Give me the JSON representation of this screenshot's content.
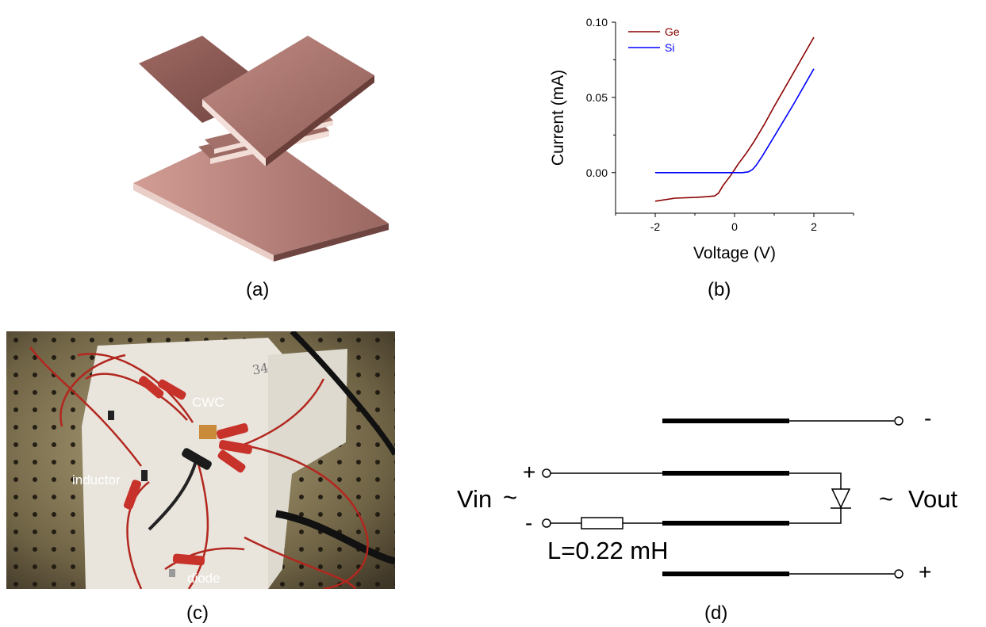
{
  "panels": {
    "a": {
      "label": "(a)"
    },
    "b": {
      "label": "(b)"
    },
    "c": {
      "label": "(c)"
    },
    "d": {
      "label": "(d)"
    }
  },
  "chart_data": {
    "type": "line",
    "title": "",
    "xlabel": "Voltage (V)",
    "ylabel": "Current (mA)",
    "xlim": [
      -3,
      3
    ],
    "ylim": [
      -0.027,
      0.1
    ],
    "xticks": [
      -2,
      0,
      2
    ],
    "xtick_labels": [
      "-2",
      "0",
      "2"
    ],
    "yticks": [
      0.0,
      0.05,
      0.1
    ],
    "ytick_labels": [
      "0.00",
      "0.05",
      "0.10"
    ],
    "legend": "top-left",
    "grid": false,
    "series": [
      {
        "name": "Ge",
        "color": "#8b0000",
        "x": [
          -2.0,
          -1.5,
          -1.0,
          -0.7,
          -0.5,
          -0.4,
          -0.3,
          -0.2,
          -0.1,
          0.0,
          0.1,
          0.3,
          0.5,
          0.75,
          1.0,
          1.5,
          2.0
        ],
        "y": [
          -0.019,
          -0.017,
          -0.0165,
          -0.016,
          -0.0155,
          -0.0135,
          -0.009,
          -0.0055,
          -0.002,
          0.002,
          0.006,
          0.013,
          0.021,
          0.032,
          0.044,
          0.067,
          0.09
        ]
      },
      {
        "name": "Si",
        "color": "#0000ff",
        "x": [
          -2.0,
          -1.0,
          0.0,
          0.2,
          0.35,
          0.45,
          0.55,
          0.7,
          1.0,
          1.5,
          2.0
        ],
        "y": [
          0.0,
          0.0,
          0.0,
          0.0,
          0.0005,
          0.002,
          0.005,
          0.011,
          0.024,
          0.046,
          0.069
        ]
      }
    ]
  },
  "photo": {
    "labels": {
      "cwc": "CWC",
      "inductor": "inductor",
      "diode": "diode",
      "note": "34"
    }
  },
  "circuit": {
    "vin": "Vin",
    "vout": "Vout",
    "tilde": "~",
    "inductor_label": "L=0.22 mH",
    "plus": "+",
    "minus": "-"
  },
  "colors": {
    "plate_top": "#a9706a",
    "plate_edge": "#f2d6cf",
    "photo_bg": "#8a7a55"
  }
}
